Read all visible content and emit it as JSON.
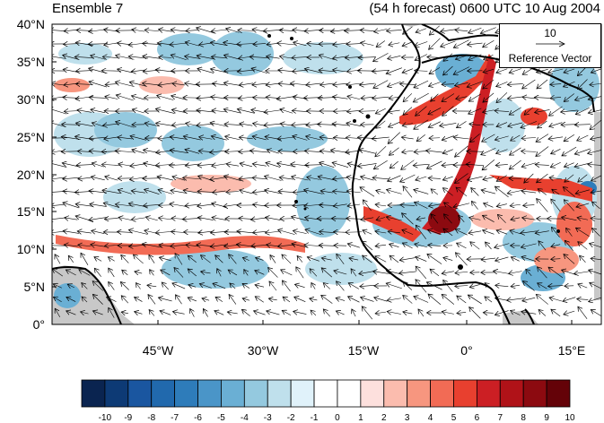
{
  "header": {
    "ensemble": "Ensemble 7",
    "forecast": "(54 h forecast) 0600 UTC 10 Aug 2004"
  },
  "map": {
    "lat_labels": [
      "40°N",
      "35°N",
      "30°N",
      "25°N",
      "20°N",
      "15°N",
      "10°N",
      "5°N",
      "0°"
    ],
    "lon_labels": [
      "45°W",
      "30°W",
      "15°W",
      "0°",
      "15°E"
    ],
    "lat_range": [
      0,
      40
    ],
    "lon_range": [
      -58,
      20
    ],
    "land_color": "#c8c8c8"
  },
  "reference_vector": {
    "value": "10",
    "label": "Reference Vector"
  },
  "colorbar": {
    "labels": [
      "-10",
      "-9",
      "-8",
      "-7",
      "-6",
      "-5",
      "-4",
      "-3",
      "-2",
      "-1",
      "0",
      "1",
      "2",
      "3",
      "4",
      "5",
      "6",
      "7",
      "8",
      "9",
      "10"
    ],
    "colors": [
      "#0a2450",
      "#0d3a75",
      "#1a56a0",
      "#2169ad",
      "#2e7cba",
      "#4a95c8",
      "#6aafd4",
      "#94c9df",
      "#bfe0ec",
      "#e0f2fa",
      "#ffffff",
      "#ffffff",
      "#fde0dd",
      "#fbbcae",
      "#f7967f",
      "#f26b55",
      "#e8402f",
      "#cc1f24",
      "#b01218",
      "#8c0a10",
      "#640208"
    ]
  }
}
